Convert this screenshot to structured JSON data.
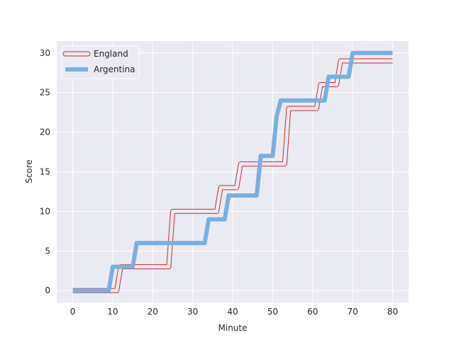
{
  "chart_data": {
    "type": "line",
    "xlabel": "Minute",
    "ylabel": "Score",
    "xlim": [
      -4,
      84
    ],
    "ylim": [
      -1.5,
      31.5
    ],
    "xticks": [
      0,
      10,
      20,
      30,
      40,
      50,
      60,
      70,
      80
    ],
    "yticks": [
      0,
      5,
      10,
      15,
      20,
      25,
      30
    ],
    "grid": true,
    "legend_position": "top-left",
    "series": [
      {
        "name": "England",
        "color": "#d62728",
        "style": "double-outline",
        "x": [
          0,
          12,
          25,
          37,
          42,
          54,
          62,
          67,
          80
        ],
        "y": [
          0,
          3,
          10,
          13,
          16,
          23,
          26,
          29,
          29
        ]
      },
      {
        "name": "Argentina",
        "color": "#7aafe0",
        "style": "thick",
        "x": [
          0,
          10,
          16,
          34,
          39,
          47,
          51,
          52,
          64,
          70,
          80
        ],
        "y": [
          0,
          3,
          6,
          9,
          12,
          17,
          22,
          24,
          27,
          30,
          30
        ]
      }
    ]
  }
}
